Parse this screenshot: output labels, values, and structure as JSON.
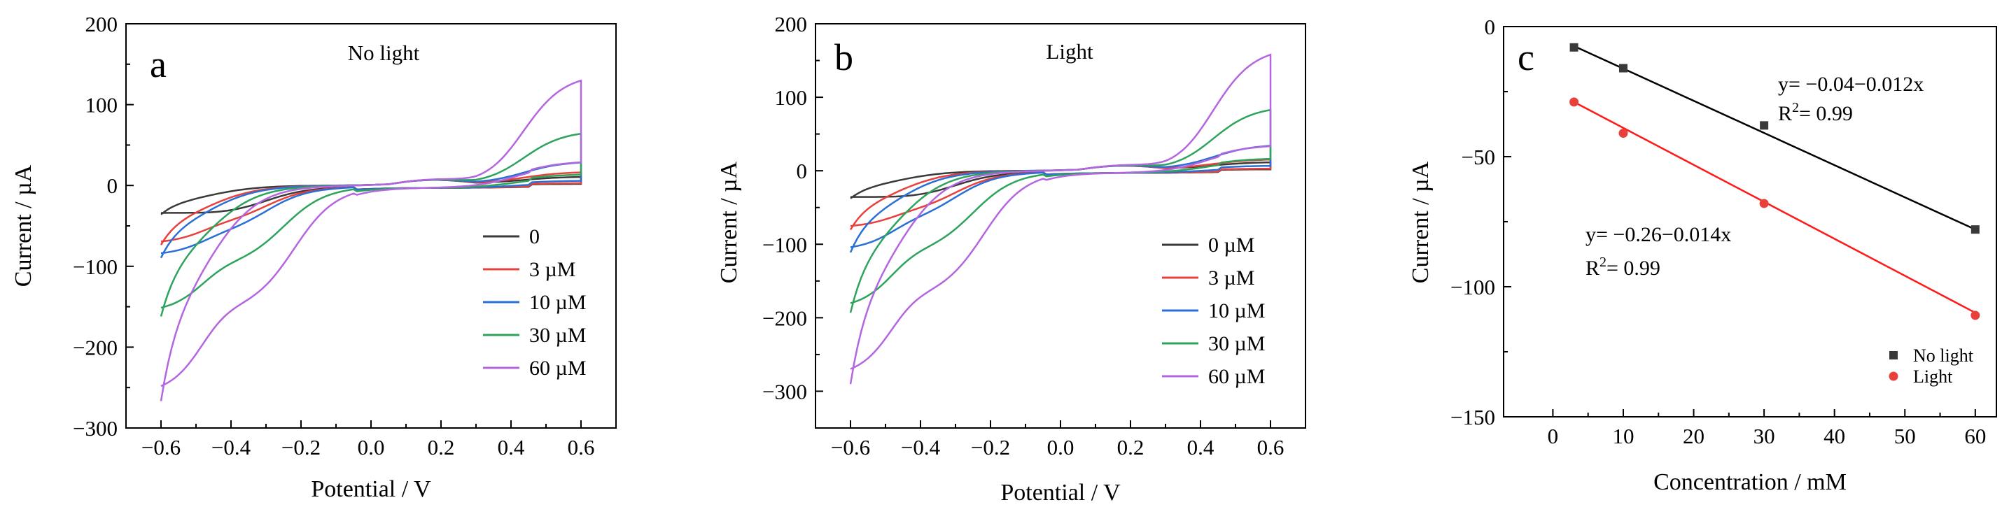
{
  "chart_data": [
    {
      "panel": "a",
      "type": "line",
      "title": "No light",
      "xlabel": "Potential / V",
      "ylabel": "Current / µA",
      "xlim": [
        -0.7,
        0.7
      ],
      "ylim": [
        -300,
        200
      ],
      "xticks": [
        -0.6,
        -0.4,
        -0.2,
        0.0,
        0.2,
        0.4,
        0.6
      ],
      "xtick_labels": [
        "−0.6",
        "−0.4",
        "−0.2",
        "0.0",
        "0.2",
        "0.4",
        "0.6"
      ],
      "yticks": [
        200,
        100,
        0,
        -100,
        -200,
        -300
      ],
      "ytick_labels": [
        "200",
        "100",
        "0",
        "−100",
        "−200",
        "−300"
      ],
      "legend_position": "center-right",
      "series": [
        {
          "name": "0",
          "color": "#3a3a3a",
          "i_start": -38,
          "plateau_low": -8,
          "i_end": 8,
          "anodic_end": 2,
          "cath_min": -40,
          "knee_c": -0.3
        },
        {
          "name": "3 µM",
          "color": "#e8413c",
          "i_start": -78,
          "plateau_low": -45,
          "i_end": 14,
          "anodic_end": 3,
          "cath_min": -55,
          "knee_c": -0.3
        },
        {
          "name": "10 µM",
          "color": "#2a6fd6",
          "i_start": -95,
          "plateau_low": -60,
          "i_end": 27,
          "anodic_end": 6,
          "cath_min": -70,
          "knee_c": -0.3
        },
        {
          "name": "30 µM",
          "color": "#2ea35c",
          "i_start": -172,
          "plateau_low": -95,
          "i_end": 65,
          "anodic_end": 14,
          "cath_min": -115,
          "knee_c": -0.25
        },
        {
          "name": "60 µM",
          "color": "#b366e0",
          "i_start": -283,
          "plateau_low": -140,
          "i_end": 135,
          "anodic_end": 30,
          "cath_min": -180,
          "knee_c": -0.22
        }
      ]
    },
    {
      "panel": "b",
      "type": "line",
      "title": "Light",
      "xlabel": "Potential / V",
      "ylabel": "Current / µA",
      "xlim": [
        -0.7,
        0.7
      ],
      "ylim": [
        -350,
        200
      ],
      "xticks": [
        -0.6,
        -0.4,
        -0.2,
        0.0,
        0.2,
        0.4,
        0.6
      ],
      "xtick_labels": [
        "−0.6",
        "−0.4",
        "−0.2",
        "0.0",
        "0.2",
        "0.4",
        "0.6"
      ],
      "yticks": [
        200,
        100,
        0,
        -100,
        -200,
        -300
      ],
      "ytick_labels": [
        "200",
        "100",
        "0",
        "−100",
        "−200",
        "−300"
      ],
      "legend_position": "center-right",
      "series": [
        {
          "name": "0 µM",
          "color": "#3a3a3a",
          "i_start": -40,
          "plateau_low": -10,
          "i_end": 9,
          "anodic_end": 2,
          "cath_min": -42,
          "knee_c": -0.3
        },
        {
          "name": "3 µM",
          "color": "#e8413c",
          "i_start": -85,
          "plateau_low": -60,
          "i_end": 13,
          "anodic_end": 3,
          "cath_min": -65,
          "knee_c": -0.3
        },
        {
          "name": "10 µM",
          "color": "#2a6fd6",
          "i_start": -118,
          "plateau_low": -75,
          "i_end": 33,
          "anodic_end": 7,
          "cath_min": -80,
          "knee_c": -0.3
        },
        {
          "name": "30 µM",
          "color": "#2ea35c",
          "i_start": -205,
          "plateau_low": -110,
          "i_end": 85,
          "anodic_end": 17,
          "cath_min": -130,
          "knee_c": -0.25
        },
        {
          "name": "60 µM",
          "color": "#b366e0",
          "i_start": -308,
          "plateau_low": -150,
          "i_end": 165,
          "anodic_end": 35,
          "cath_min": -200,
          "knee_c": -0.22
        }
      ]
    },
    {
      "panel": "c",
      "type": "scatter",
      "xlabel": "Concentration / mM",
      "ylabel": "Current / µA",
      "xlim": [
        -7,
        63
      ],
      "ylim": [
        -150,
        0
      ],
      "xticks": [
        0,
        10,
        20,
        30,
        40,
        50,
        60
      ],
      "xtick_labels": [
        "0",
        "10",
        "20",
        "30",
        "40",
        "50",
        "60"
      ],
      "yticks": [
        0,
        -50,
        -100,
        -150
      ],
      "ytick_labels": [
        "0",
        "−50",
        "−100",
        "−150"
      ],
      "legend_position": "bottom-right",
      "series": [
        {
          "name": "No light",
          "color": "#3a3a3a",
          "marker": "square",
          "x": [
            3,
            10,
            30,
            60
          ],
          "y": [
            -8,
            -16,
            -38,
            -78
          ],
          "fit": {
            "x": [
              3,
              60
            ],
            "y": [
              -7.5,
              -78
            ]
          },
          "equation": "y= −0.04−0.012x",
          "r2_prefix": "R",
          "r2_sup": "2",
          "r2_value": "= 0.99"
        },
        {
          "name": "Light",
          "color": "#e8413c",
          "marker": "circle",
          "x": [
            3,
            10,
            30,
            60
          ],
          "y": [
            -29,
            -41,
            -68,
            -111
          ],
          "fit": {
            "x": [
              3,
              60
            ],
            "y": [
              -29,
              -110
            ]
          },
          "equation": "y= −0.26−0.014x",
          "r2_prefix": "R",
          "r2_sup": "2",
          "r2_value": "= 0.99"
        }
      ]
    }
  ]
}
